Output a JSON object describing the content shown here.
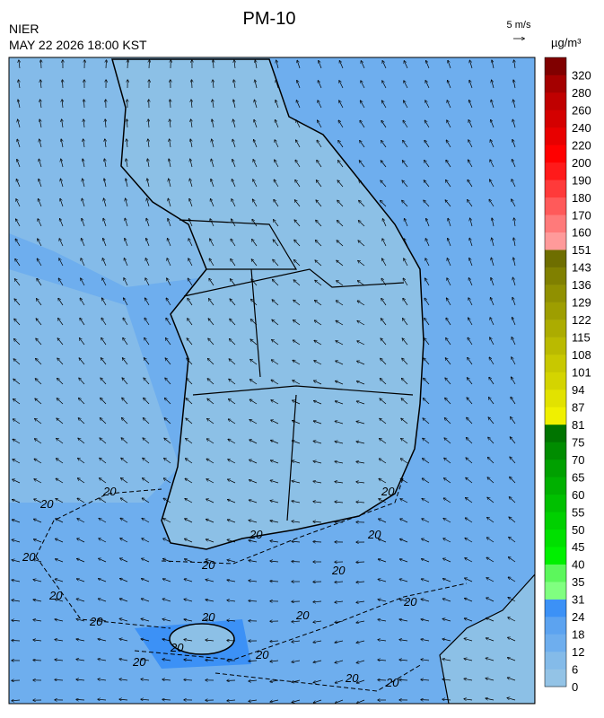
{
  "title": "PM-10",
  "source": "NIER",
  "datetime": "MAY 22 2026 18:00 KST",
  "wind_scale": "5 m/s",
  "unit": "µg/m³",
  "contour_label": "20",
  "legend": {
    "levels": [
      0,
      6,
      12,
      18,
      24,
      31,
      35,
      40,
      45,
      50,
      55,
      60,
      65,
      70,
      75,
      81,
      87,
      94,
      101,
      108,
      115,
      122,
      129,
      136,
      143,
      151,
      160,
      170,
      180,
      190,
      200,
      220,
      240,
      260,
      280,
      320
    ],
    "colors": [
      "#93c3e6",
      "#84bbe9",
      "#6eaeee",
      "#5ca3f0",
      "#3c91f6",
      "#80ff80",
      "#5cf75c",
      "#00f000",
      "#00e000",
      "#00d000",
      "#00c000",
      "#00b000",
      "#00a000",
      "#008c00",
      "#007400",
      "#f0f000",
      "#e2e200",
      "#d4d400",
      "#c8c800",
      "#baba00",
      "#acac00",
      "#9e9e00",
      "#909000",
      "#808000",
      "#6e6e00",
      "#ff9a9a",
      "#ff7a7a",
      "#ff5a5a",
      "#ff3a3a",
      "#ff1a1a",
      "#ff0000",
      "#e80000",
      "#d40000",
      "#c00000",
      "#a40000",
      "#800000"
    ]
  }
}
